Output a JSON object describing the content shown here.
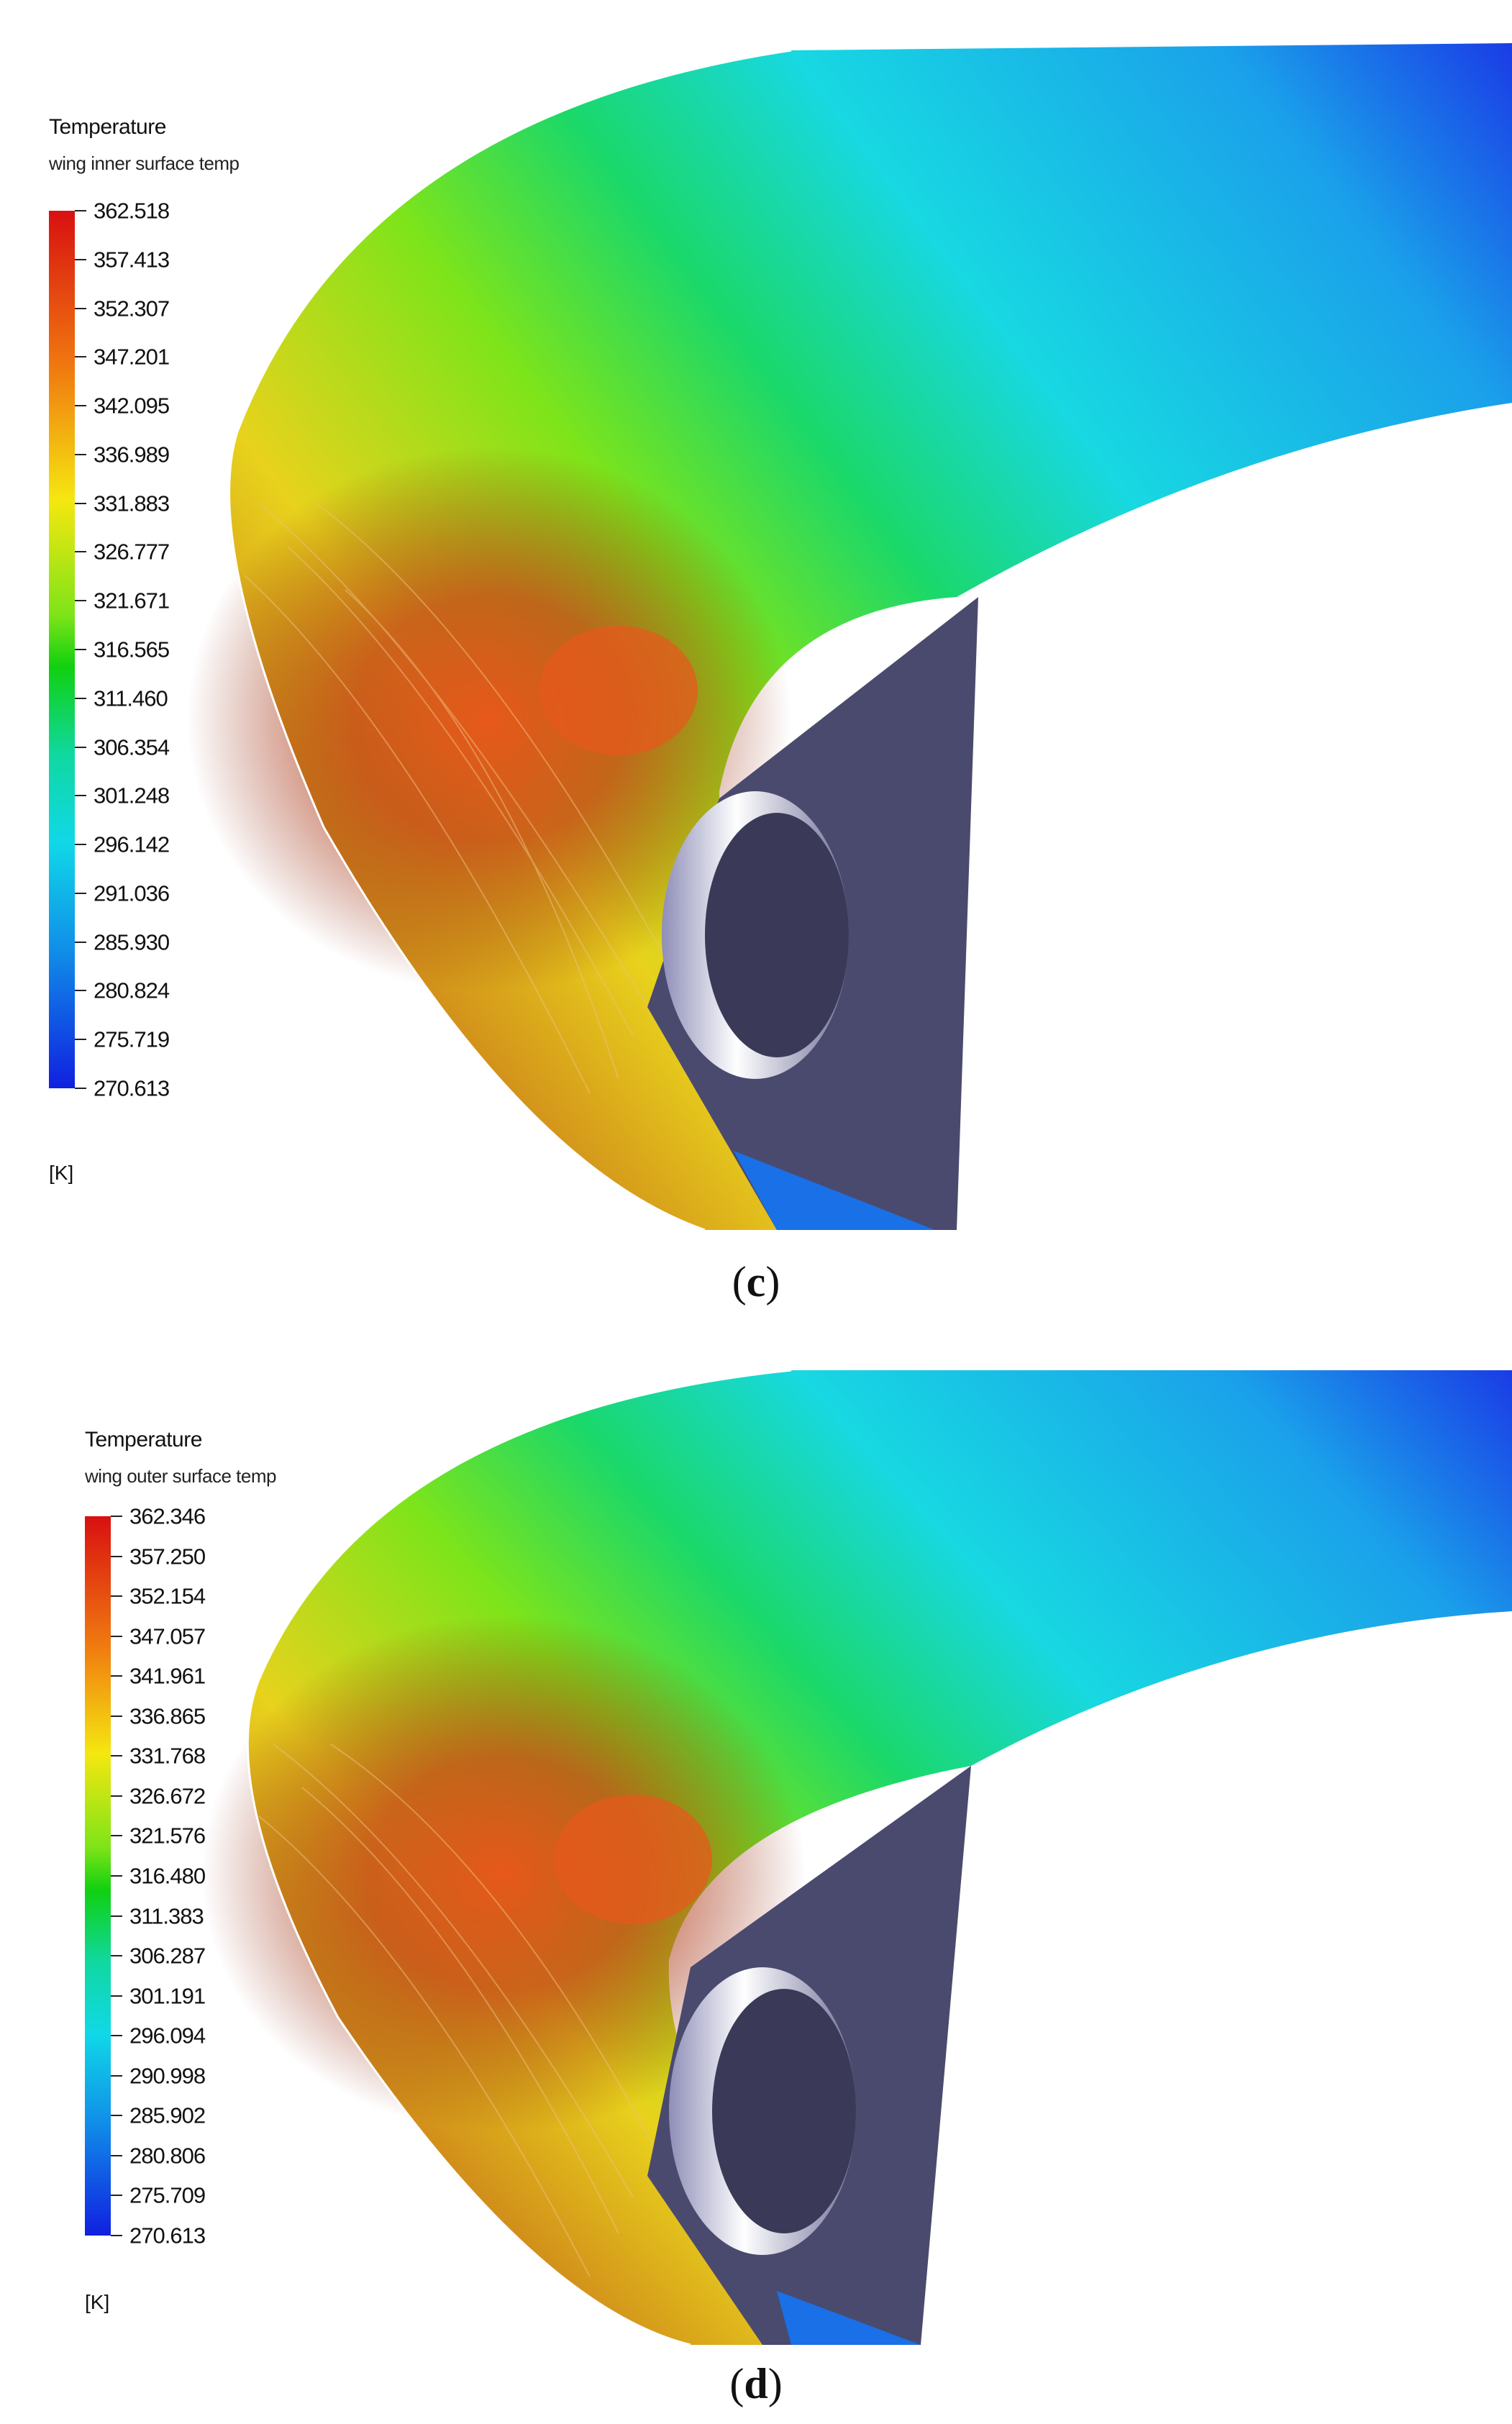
{
  "panels": [
    {
      "id": "c",
      "caption_open": "(",
      "caption_letter": "c",
      "caption_close": ")",
      "legend": {
        "title": "Temperature",
        "subtitle": "wing inner surface temp",
        "unit": "[K]",
        "ticks": [
          "362.518",
          "357.413",
          "352.307",
          "347.201",
          "342.095",
          "336.989",
          "331.883",
          "326.777",
          "321.671",
          "316.565",
          "311.460",
          "306.354",
          "301.248",
          "296.142",
          "291.036",
          "285.930",
          "280.824",
          "275.719",
          "270.613"
        ]
      }
    },
    {
      "id": "d",
      "caption_open": "(",
      "caption_letter": "d",
      "caption_close": ")",
      "legend": {
        "title": "Temperature",
        "subtitle": "wing outer surface temp",
        "unit": "[K]",
        "ticks": [
          "362.346",
          "357.250",
          "352.154",
          "347.057",
          "341.961",
          "336.865",
          "331.768",
          "326.672",
          "321.576",
          "316.480",
          "311.383",
          "306.287",
          "301.191",
          "296.094",
          "290.998",
          "285.902",
          "280.806",
          "275.709",
          "270.613"
        ]
      }
    }
  ],
  "colors": {
    "max": "#d81010",
    "mid_high": "#f5e710",
    "mid": "#10d010",
    "mid_low": "#10d8e8",
    "min": "#1020e0",
    "duct": "#4a4a6e"
  }
}
